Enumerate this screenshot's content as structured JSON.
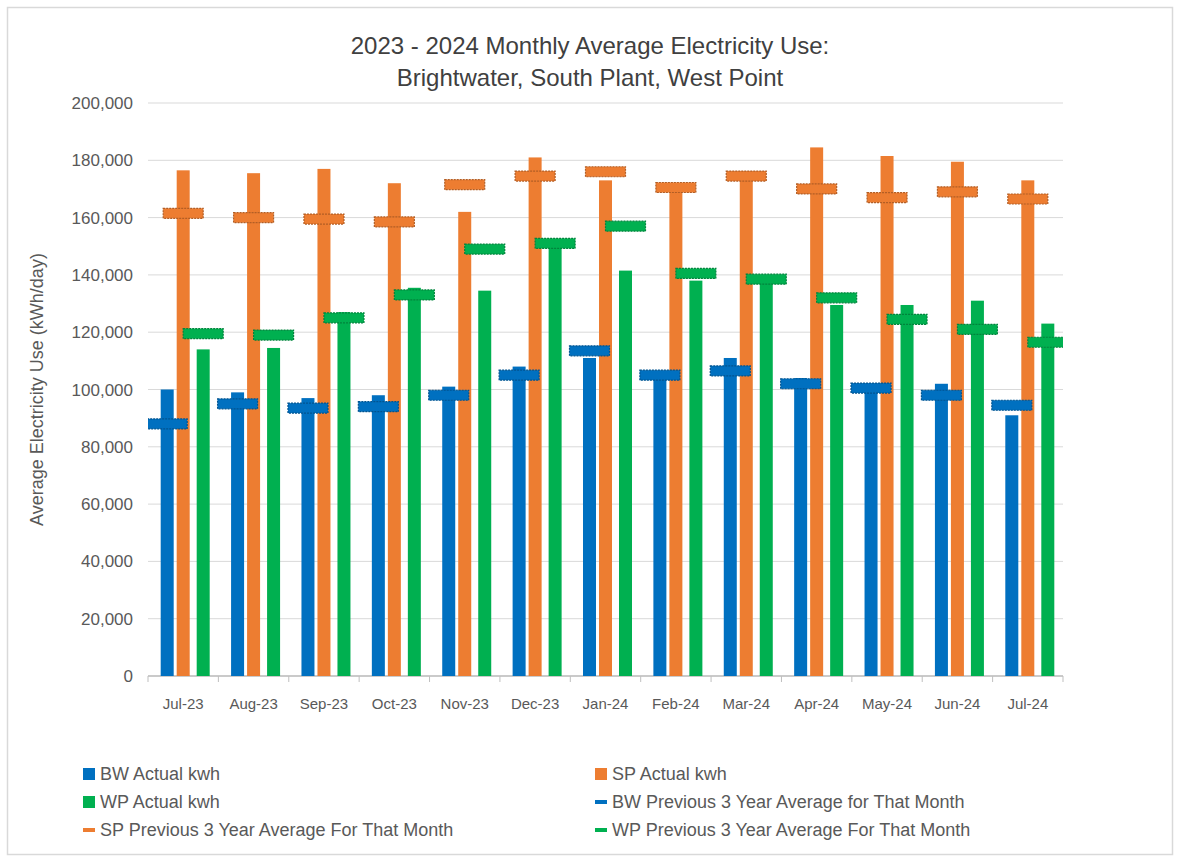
{
  "chart_data": {
    "type": "bar",
    "title": "2023 - 2024 Monthly Average Electricity Use:\nBrightwater, South Plant, West Point",
    "y_label": "Average Electricity Use (kWh/day)",
    "categories": [
      "Jul-23",
      "Aug-23",
      "Sep-23",
      "Oct-23",
      "Nov-23",
      "Dec-23",
      "Jan-24",
      "Feb-24",
      "Mar-24",
      "Apr-24",
      "May-24",
      "Jun-24",
      "Jul-24"
    ],
    "series": [
      {
        "name": "BW Actual kwh",
        "type": "bar",
        "color": "#0070c0",
        "values": [
          100000,
          99000,
          97000,
          98000,
          101000,
          108000,
          111000,
          106000,
          111000,
          104000,
          101000,
          102000,
          91000
        ]
      },
      {
        "name": "SP Actual kwh",
        "type": "bar",
        "color": "#ed7d31",
        "values": [
          176500,
          175500,
          177000,
          172000,
          162000,
          181000,
          173000,
          170000,
          176000,
          184500,
          181500,
          179500,
          173000
        ]
      },
      {
        "name": "WP Actual kwh",
        "type": "bar",
        "color": "#00b050",
        "values": [
          114000,
          114500,
          127000,
          135500,
          134500,
          151000,
          141500,
          138000,
          137000,
          129500,
          129500,
          131000,
          123000
        ]
      },
      {
        "name": "BW Previous 3 Year Average for That Month",
        "type": "line",
        "marker": "dash",
        "line_style": "none",
        "color": "#0070c0",
        "values": [
          88000,
          95000,
          93500,
          94000,
          98000,
          105000,
          113500,
          105000,
          106500,
          102000,
          100500,
          98000,
          94500
        ]
      },
      {
        "name": "SP Previous 3 Year Average For That Month",
        "type": "line",
        "marker": "dash",
        "line_style": "none",
        "color": "#ed7d31",
        "values": [
          161500,
          160000,
          159500,
          158500,
          171500,
          174500,
          176000,
          170500,
          174500,
          170000,
          167000,
          169000,
          166500
        ]
      },
      {
        "name": "WP Previous 3 Year Average For That Month",
        "type": "line",
        "marker": "dash",
        "line_style": "none",
        "color": "#00b050",
        "values": [
          119500,
          119000,
          125000,
          133000,
          149000,
          151000,
          157000,
          140500,
          138500,
          132000,
          124500,
          121000,
          116500
        ]
      }
    ],
    "ylim": [
      0,
      200000
    ],
    "yticks": [
      0,
      {
        "value": 20000,
        "label": "20,000"
      },
      {
        "value": 40000,
        "label": "40,000"
      },
      {
        "value": 60000,
        "label": "60,000"
      },
      {
        "value": 80000,
        "label": "80,000"
      },
      {
        "value": 100000,
        "label": "100,000"
      },
      {
        "value": 120000,
        "label": "120,000"
      },
      {
        "value": 140000,
        "label": "140,000"
      },
      {
        "value": 160000,
        "label": "160,000"
      },
      {
        "value": 180000,
        "label": "180,000"
      },
      {
        "value": 200000,
        "label": "200,000"
      }
    ],
    "grid": true,
    "legend": "bottom"
  }
}
